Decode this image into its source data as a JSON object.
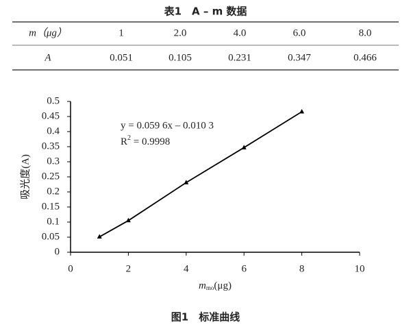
{
  "table": {
    "title": "表1　A – m 数据",
    "header": [
      "m（μg）",
      "1",
      "2.0",
      "4.0",
      "6.0",
      "8.0"
    ],
    "rows": [
      [
        "A",
        "0.051",
        "0.105",
        "0.231",
        "0.347",
        "0.466"
      ]
    ]
  },
  "chart_data": {
    "type": "line",
    "x": [
      1,
      2,
      4,
      6,
      8
    ],
    "series": [
      {
        "color": "#000000",
        "values": [
          0.051,
          0.105,
          0.231,
          0.347,
          0.466
        ]
      }
    ],
    "xlim": [
      0,
      10
    ],
    "ylim": [
      0,
      0.5
    ],
    "xticks": [
      0,
      2,
      4,
      6,
      8,
      10
    ],
    "yticks": [
      0,
      0.05,
      0.1,
      0.15,
      0.2,
      0.25,
      0.3,
      0.35,
      0.4,
      0.45,
      0.5
    ],
    "y_label": "吸光度(A)",
    "x_label": "m",
    "x_label_sub": "mo",
    "x_label_unit": "(μg)",
    "equation": "y = 0.059 6x – 0.010 3",
    "r2_label": "R",
    "r2_sup": "2",
    "r2_value": " = 0.9998"
  },
  "caption": "图1　标准曲线"
}
